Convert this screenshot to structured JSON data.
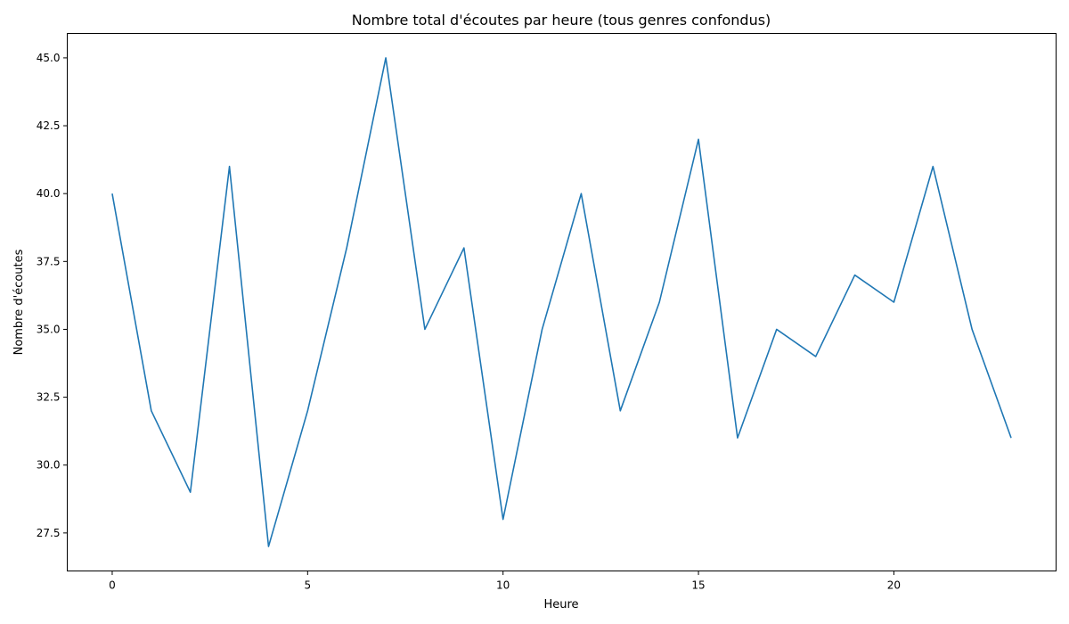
{
  "chart_data": {
    "type": "line",
    "title": "Nombre total d'écoutes par heure (tous genres confondus)",
    "xlabel": "Heure",
    "ylabel": "Nombre d'écoutes",
    "x": [
      0,
      1,
      2,
      3,
      4,
      5,
      6,
      7,
      8,
      9,
      10,
      11,
      12,
      13,
      14,
      15,
      16,
      17,
      18,
      19,
      20,
      21,
      22,
      23
    ],
    "series": [
      {
        "values": [
          40,
          32,
          29,
          41,
          27,
          32,
          38,
          45,
          35,
          38,
          28,
          35,
          40,
          32,
          36,
          42,
          31,
          35,
          34,
          37,
          36,
          41,
          35,
          31
        ],
        "color": "#1f77b4"
      }
    ],
    "xlim": [
      -1.15,
      24.15
    ],
    "ylim": [
      26.1,
      45.9
    ],
    "xticks": [
      0,
      5,
      10,
      15,
      20
    ],
    "yticks": [
      27.5,
      30.0,
      32.5,
      35.0,
      37.5,
      40.0,
      42.5,
      45.0
    ],
    "xtick_labels": [
      "0",
      "5",
      "10",
      "15",
      "20"
    ],
    "ytick_labels": [
      "27.5",
      "30.0",
      "32.5",
      "35.0",
      "37.5",
      "40.0",
      "42.5",
      "45.0"
    ],
    "grid": false,
    "legend": "none"
  }
}
